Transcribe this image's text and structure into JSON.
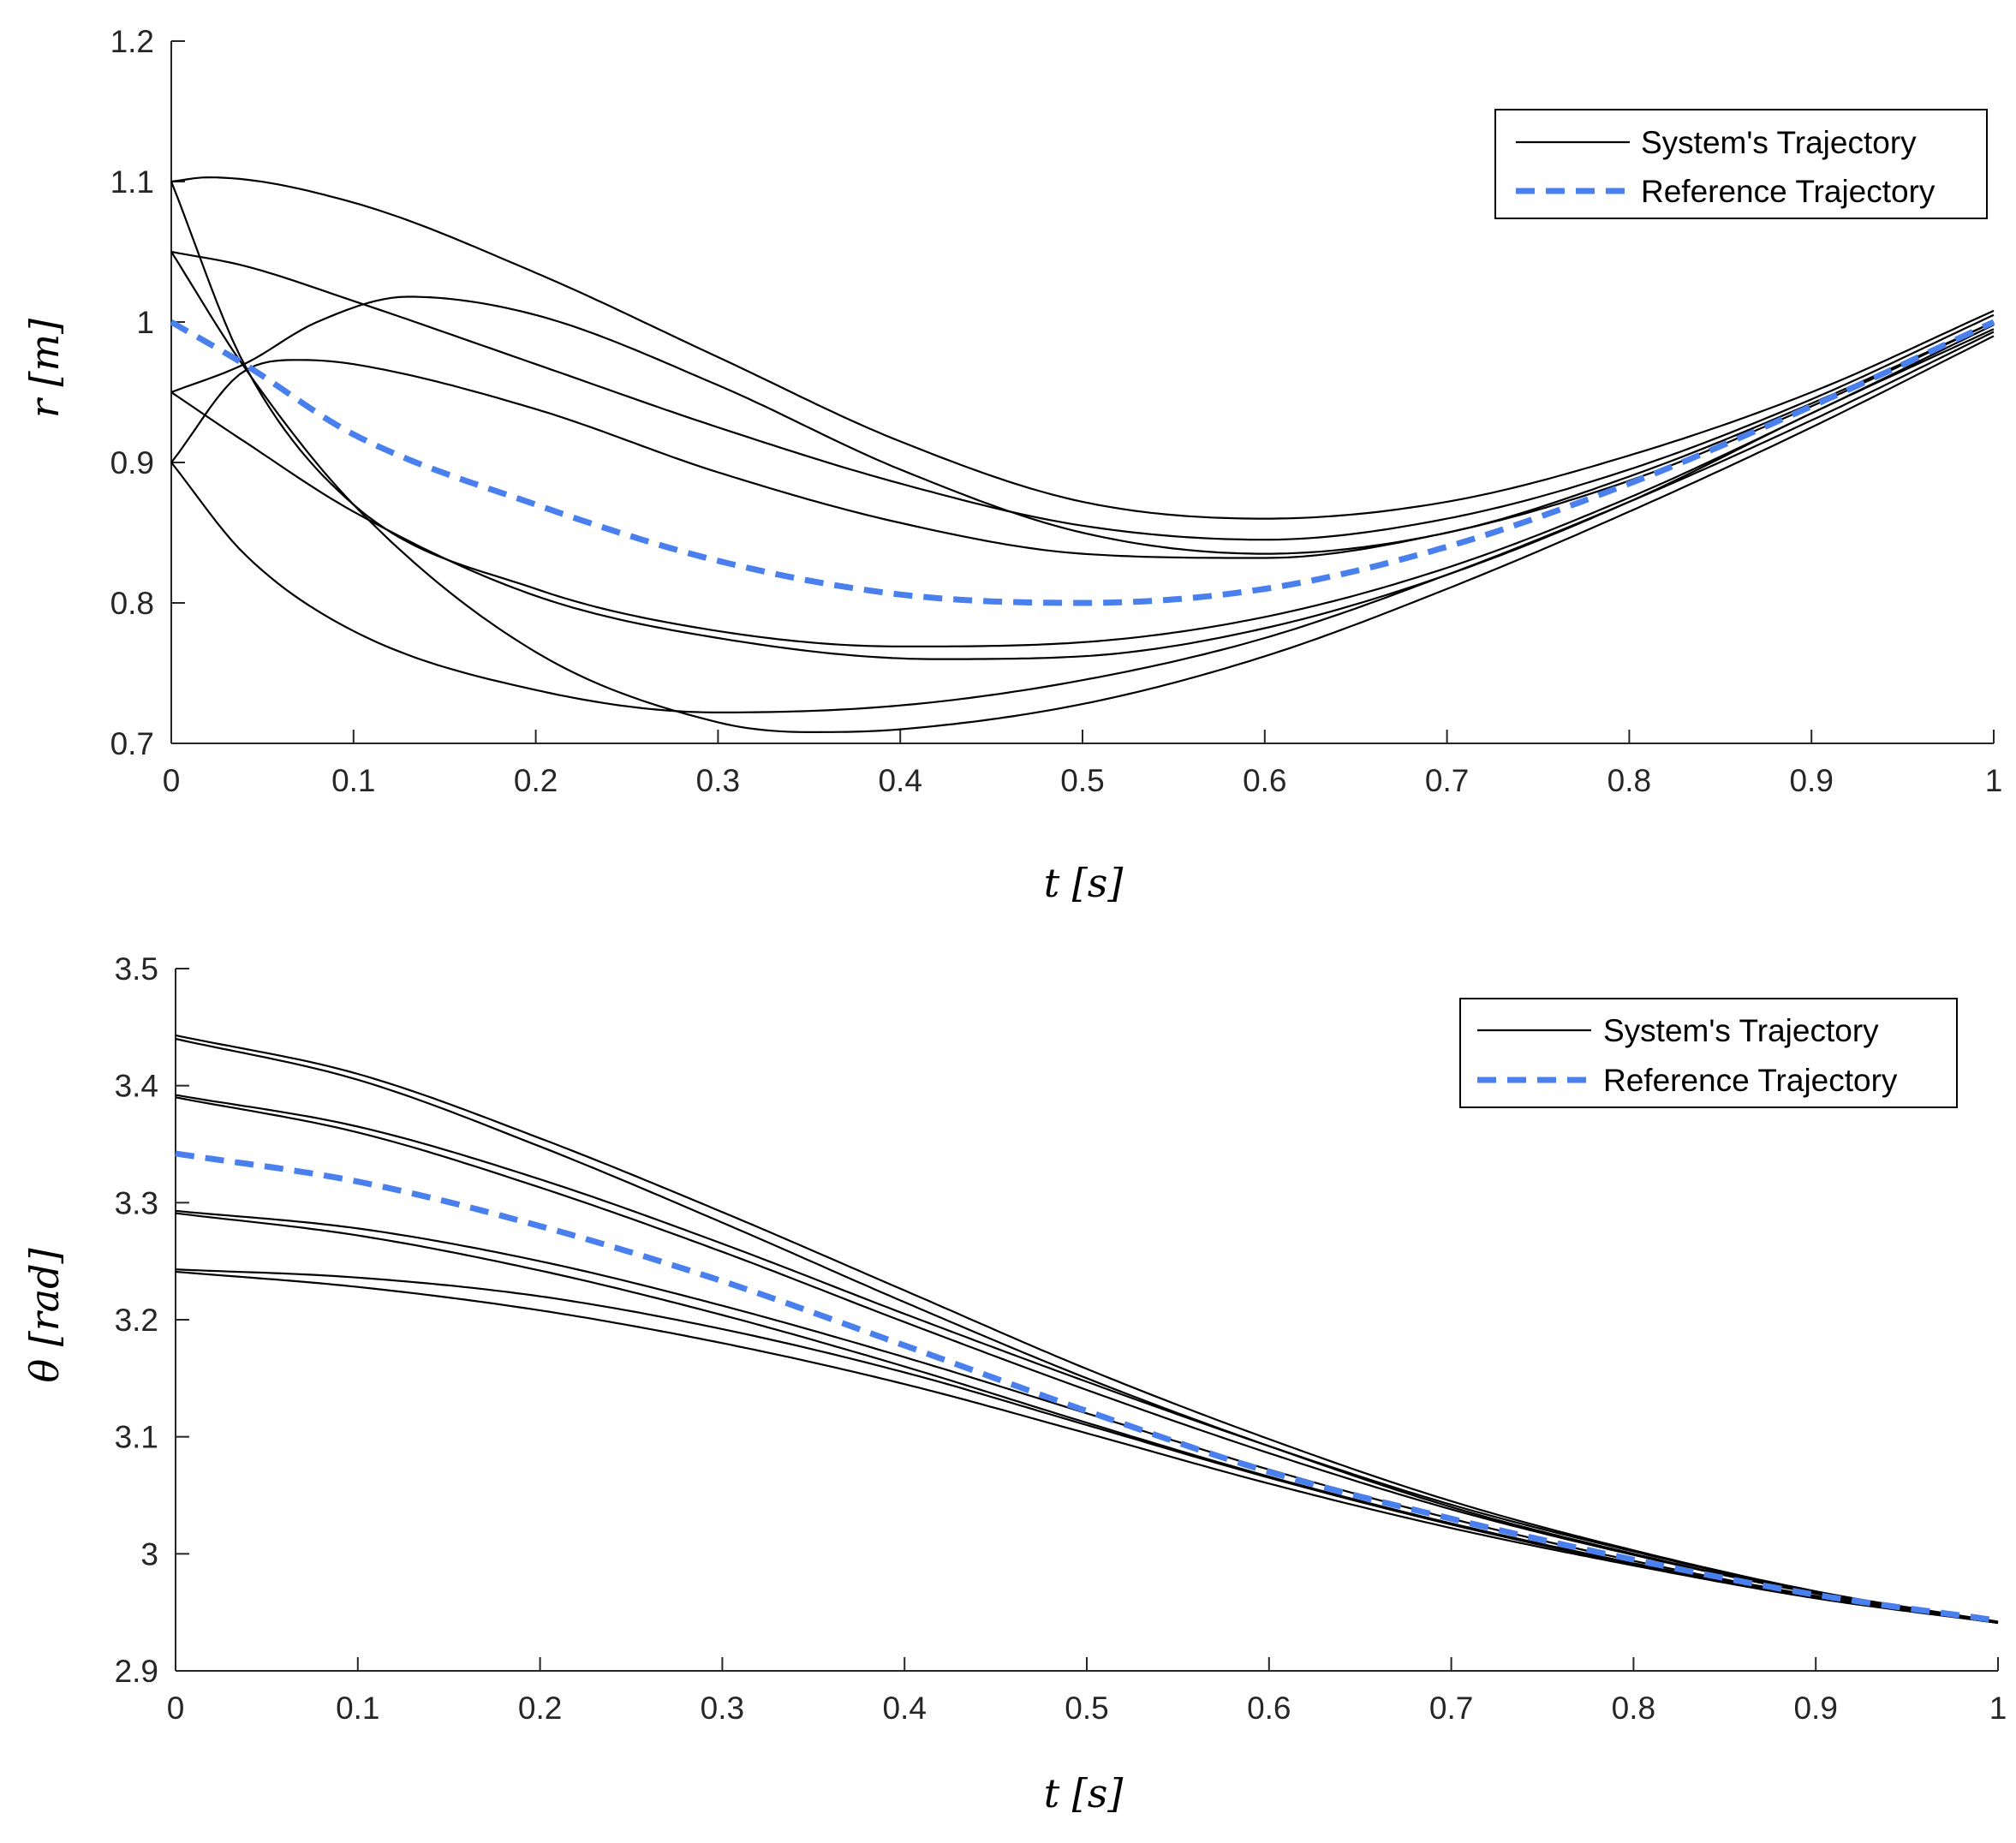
{
  "chart_data": [
    {
      "type": "line",
      "xlabel": "t [s]",
      "ylabel": "r [m]",
      "xlim": [
        0,
        1
      ],
      "ylim": [
        0.7,
        1.2
      ],
      "xticks": [
        0,
        0.1,
        0.2,
        0.3,
        0.4,
        0.5,
        0.6,
        0.7,
        0.8,
        0.9,
        1
      ],
      "xtick_labels": [
        "0",
        "0.1",
        "0.2",
        "0.3",
        "0.4",
        "0.5",
        "0.6",
        "0.7",
        "0.8",
        "0.9",
        "1"
      ],
      "yticks": [
        0.7,
        0.8,
        0.9,
        1,
        1.1,
        1.2
      ],
      "ytick_labels": [
        "0.7",
        "0.8",
        "0.9",
        "1",
        "1.1",
        "1.2"
      ],
      "legend": {
        "position": "top-right",
        "entries": [
          "System's Trajectory",
          "Reference Trajectory"
        ]
      },
      "colors": {
        "system": "#000000",
        "reference": "#4a80ee"
      },
      "series": [
        {
          "name": "Reference Trajectory",
          "style": "dashed",
          "x": [
            0,
            0.04,
            0.1,
            0.2,
            0.3,
            0.4,
            0.5,
            0.6,
            0.7,
            0.8,
            0.9,
            1
          ],
          "y": [
            1.0,
            0.97,
            0.92,
            0.87,
            0.83,
            0.806,
            0.8,
            0.81,
            0.84,
            0.885,
            0.94,
            1.0
          ]
        },
        {
          "name": "System's Trajectory",
          "style": "solid",
          "x": [
            0,
            0.02,
            0.1,
            0.2,
            0.3,
            0.4,
            0.5,
            0.6,
            0.7,
            0.8,
            0.9,
            1
          ],
          "y": [
            1.1,
            1.103,
            1.085,
            1.035,
            0.975,
            0.915,
            0.872,
            0.86,
            0.872,
            0.905,
            0.95,
            1.008
          ]
        },
        {
          "name": "System's Trajectory",
          "style": "solid",
          "x": [
            0,
            0.04,
            0.1,
            0.2,
            0.3,
            0.4,
            0.5,
            0.6,
            0.7,
            0.8,
            0.9,
            1
          ],
          "y": [
            1.05,
            1.04,
            1.015,
            0.97,
            0.925,
            0.885,
            0.855,
            0.845,
            0.86,
            0.895,
            0.945,
            1.005
          ]
        },
        {
          "name": "System's Trajectory",
          "style": "solid",
          "x": [
            0,
            0.04,
            0.08,
            0.13,
            0.2,
            0.3,
            0.4,
            0.5,
            0.6,
            0.7,
            0.8,
            0.9,
            1
          ],
          "y": [
            0.95,
            0.97,
            1.0,
            1.018,
            1.005,
            0.955,
            0.895,
            0.85,
            0.835,
            0.85,
            0.89,
            0.942,
            1.0
          ]
        },
        {
          "name": "System's Trajectory",
          "style": "solid",
          "x": [
            0,
            0.04,
            0.07,
            0.1,
            0.2,
            0.3,
            0.4,
            0.5,
            0.6,
            0.7,
            0.8,
            0.9,
            1
          ],
          "y": [
            0.9,
            0.965,
            0.973,
            0.97,
            0.938,
            0.893,
            0.857,
            0.835,
            0.832,
            0.85,
            0.887,
            0.94,
            1.0
          ]
        },
        {
          "name": "System's Trajectory",
          "style": "solid",
          "x": [
            0,
            0.04,
            0.1,
            0.2,
            0.3,
            0.4,
            0.5,
            0.6,
            0.7,
            0.8,
            0.9,
            1
          ],
          "y": [
            1.1,
            0.97,
            0.87,
            0.81,
            0.78,
            0.769,
            0.772,
            0.79,
            0.825,
            0.875,
            0.935,
            0.998
          ]
        },
        {
          "name": "System's Trajectory",
          "style": "solid",
          "x": [
            0,
            0.04,
            0.1,
            0.2,
            0.3,
            0.42,
            0.5,
            0.6,
            0.7,
            0.8,
            0.9,
            1
          ],
          "y": [
            0.95,
            0.915,
            0.865,
            0.805,
            0.775,
            0.76,
            0.762,
            0.782,
            0.82,
            0.872,
            0.935,
            0.995
          ]
        },
        {
          "name": "System's Trajectory",
          "style": "solid",
          "x": [
            0,
            0.04,
            0.1,
            0.2,
            0.3,
            0.35,
            0.4,
            0.5,
            0.6,
            0.7,
            0.8,
            0.9,
            1
          ],
          "y": [
            1.05,
            0.968,
            0.87,
            0.765,
            0.715,
            0.708,
            0.71,
            0.728,
            0.762,
            0.81,
            0.865,
            0.925,
            0.99
          ]
        },
        {
          "name": "System's Trajectory",
          "style": "solid",
          "x": [
            0,
            0.04,
            0.1,
            0.2,
            0.3,
            0.4,
            0.5,
            0.6,
            0.7,
            0.8,
            0.9,
            1
          ],
          "y": [
            0.9,
            0.835,
            0.78,
            0.738,
            0.722,
            0.727,
            0.745,
            0.775,
            0.82,
            0.872,
            0.93,
            0.993
          ]
        }
      ]
    },
    {
      "type": "line",
      "xlabel": "t [s]",
      "ylabel": "θ [rad]",
      "xlim": [
        0,
        1
      ],
      "ylim": [
        2.9,
        3.5
      ],
      "xticks": [
        0,
        0.1,
        0.2,
        0.3,
        0.4,
        0.5,
        0.6,
        0.7,
        0.8,
        0.9,
        1
      ],
      "xtick_labels": [
        "0",
        "0.1",
        "0.2",
        "0.3",
        "0.4",
        "0.5",
        "0.6",
        "0.7",
        "0.8",
        "0.9",
        "1"
      ],
      "yticks": [
        2.9,
        3.0,
        3.1,
        3.2,
        3.3,
        3.4,
        3.5
      ],
      "ytick_labels": [
        "2.9",
        "3",
        "3.1",
        "3.2",
        "3.3",
        "3.4",
        "3.5"
      ],
      "legend": {
        "position": "top-right",
        "entries": [
          "System's Trajectory",
          "Reference Trajectory"
        ]
      },
      "colors": {
        "system": "#000000",
        "reference": "#4a80ee"
      },
      "series": [
        {
          "name": "Reference Trajectory",
          "style": "dashed",
          "x": [
            0,
            0.1,
            0.2,
            0.3,
            0.4,
            0.5,
            0.6,
            0.7,
            0.8,
            0.9,
            1
          ],
          "y": [
            3.342,
            3.318,
            3.28,
            3.233,
            3.178,
            3.122,
            3.07,
            3.03,
            2.995,
            2.965,
            2.943
          ]
        },
        {
          "name": "System's Trajectory",
          "style": "solid",
          "x": [
            0,
            0.1,
            0.2,
            0.3,
            0.4,
            0.5,
            0.6,
            0.7,
            0.8,
            0.9,
            1
          ],
          "y": [
            3.443,
            3.41,
            3.355,
            3.292,
            3.225,
            3.158,
            3.098,
            3.045,
            3.003,
            2.968,
            2.942
          ]
        },
        {
          "name": "System's Trajectory",
          "style": "solid",
          "x": [
            0,
            0.1,
            0.2,
            0.3,
            0.4,
            0.5,
            0.6,
            0.7,
            0.8,
            0.9,
            1
          ],
          "y": [
            3.392,
            3.365,
            3.32,
            3.265,
            3.205,
            3.147,
            3.092,
            3.042,
            3.002,
            2.967,
            2.942
          ]
        },
        {
          "name": "System's Trajectory",
          "style": "solid",
          "x": [
            0,
            0.1,
            0.2,
            0.3,
            0.4,
            0.5,
            0.6,
            0.7,
            0.8,
            0.9,
            1
          ],
          "y": [
            3.44,
            3.405,
            3.348,
            3.283,
            3.215,
            3.15,
            3.092,
            3.04,
            3.0,
            2.966,
            2.941
          ]
        },
        {
          "name": "System's Trajectory",
          "style": "solid",
          "x": [
            0,
            0.1,
            0.2,
            0.3,
            0.4,
            0.5,
            0.6,
            0.7,
            0.8,
            0.9,
            1
          ],
          "y": [
            3.39,
            3.36,
            3.313,
            3.258,
            3.198,
            3.14,
            3.086,
            3.038,
            2.999,
            2.966,
            2.941
          ]
        },
        {
          "name": "System's Trajectory",
          "style": "solid",
          "x": [
            0,
            0.1,
            0.2,
            0.3,
            0.4,
            0.5,
            0.6,
            0.7,
            0.8,
            0.9,
            1
          ],
          "y": [
            3.293,
            3.278,
            3.25,
            3.212,
            3.168,
            3.12,
            3.072,
            3.03,
            2.994,
            2.964,
            2.941
          ]
        },
        {
          "name": "System's Trajectory",
          "style": "solid",
          "x": [
            0,
            0.1,
            0.2,
            0.3,
            0.4,
            0.5,
            0.6,
            0.7,
            0.8,
            0.9,
            1
          ],
          "y": [
            3.291,
            3.272,
            3.242,
            3.204,
            3.16,
            3.112,
            3.066,
            3.026,
            2.992,
            2.963,
            2.941
          ]
        },
        {
          "name": "System's Trajectory",
          "style": "solid",
          "x": [
            0,
            0.1,
            0.2,
            0.3,
            0.4,
            0.5,
            0.6,
            0.7,
            0.8,
            0.9,
            1
          ],
          "y": [
            3.243,
            3.236,
            3.22,
            3.192,
            3.155,
            3.11,
            3.065,
            3.025,
            2.991,
            2.963,
            2.941
          ]
        },
        {
          "name": "System's Trajectory",
          "style": "solid",
          "x": [
            0,
            0.1,
            0.2,
            0.3,
            0.4,
            0.5,
            0.6,
            0.7,
            0.8,
            0.9,
            1
          ],
          "y": [
            3.241,
            3.228,
            3.208,
            3.18,
            3.145,
            3.103,
            3.06,
            3.022,
            2.99,
            2.962,
            2.941
          ]
        }
      ]
    }
  ]
}
